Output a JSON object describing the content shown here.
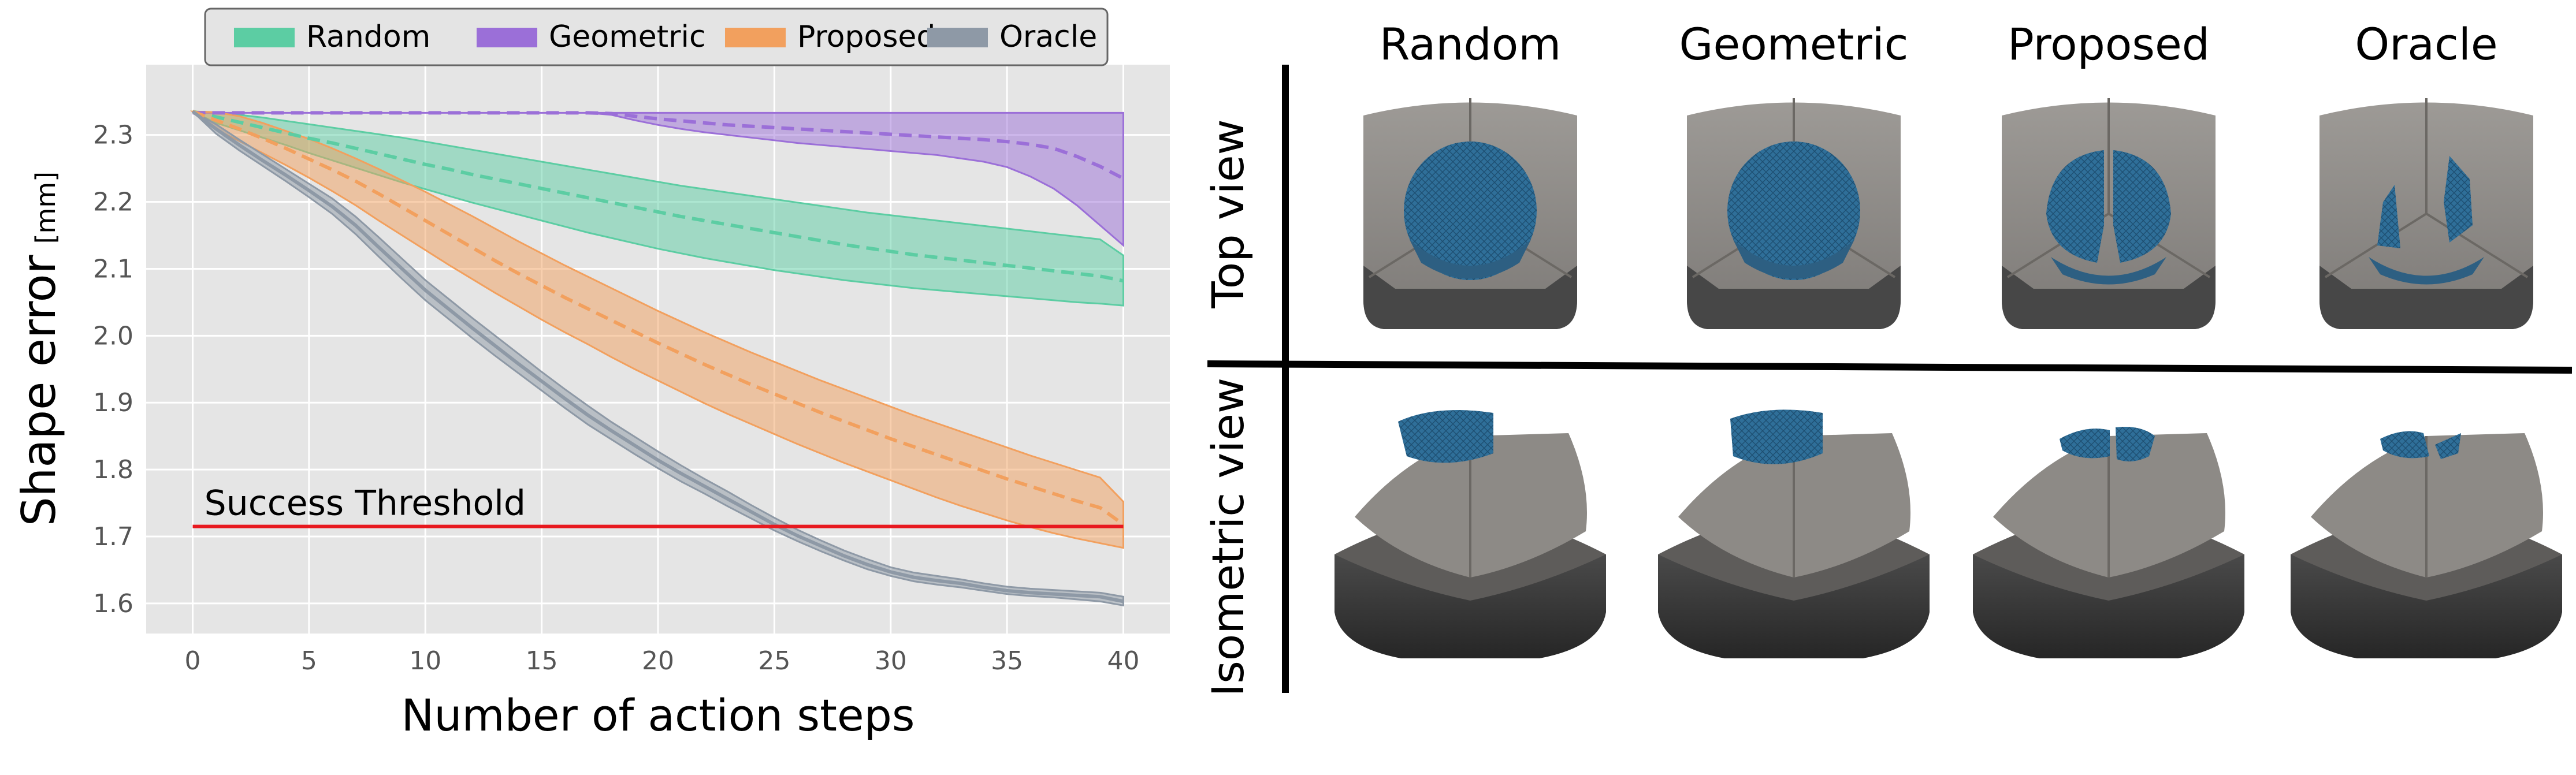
{
  "chart_data": {
    "type": "line",
    "xlabel": "Number of action steps",
    "ylabel": "Shape error",
    "ylabel_unit": "[mm]",
    "xlim": [
      -2,
      42
    ],
    "ylim": [
      1.555,
      2.405
    ],
    "x_ticks": [
      0,
      5,
      10,
      15,
      20,
      25,
      30,
      35,
      40
    ],
    "y_ticks": [
      1.6,
      1.7,
      1.8,
      1.9,
      2.0,
      2.1,
      2.2,
      2.3
    ],
    "y_tick_labels": [
      "1.6",
      "1.7",
      "1.8",
      "1.9",
      "2.0",
      "2.1",
      "2.2",
      "2.3"
    ],
    "grid": true,
    "legend_position": "top",
    "threshold": {
      "label": "Success Threshold",
      "value": 1.715,
      "color": "#e8191f"
    },
    "x": [
      0,
      1,
      2,
      3,
      4,
      5,
      6,
      7,
      8,
      9,
      10,
      11,
      12,
      13,
      14,
      15,
      16,
      17,
      18,
      19,
      20,
      21,
      22,
      23,
      24,
      25,
      26,
      27,
      28,
      29,
      30,
      31,
      32,
      33,
      34,
      35,
      36,
      37,
      38,
      39,
      40
    ],
    "series": [
      {
        "name": "Random",
        "color": "#5ccda3",
        "mean": [
          2.335,
          2.327,
          2.319,
          2.311,
          2.303,
          2.295,
          2.288,
          2.28,
          2.272,
          2.264,
          2.256,
          2.249,
          2.241,
          2.234,
          2.227,
          2.22,
          2.213,
          2.206,
          2.199,
          2.192,
          2.185,
          2.178,
          2.172,
          2.166,
          2.16,
          2.154,
          2.148,
          2.142,
          2.136,
          2.131,
          2.126,
          2.121,
          2.117,
          2.113,
          2.109,
          2.105,
          2.101,
          2.097,
          2.093,
          2.089,
          2.082
        ],
        "lower": [
          2.335,
          2.318,
          2.307,
          2.296,
          2.285,
          2.273,
          2.262,
          2.251,
          2.24,
          2.229,
          2.219,
          2.209,
          2.199,
          2.19,
          2.181,
          2.172,
          2.163,
          2.154,
          2.146,
          2.138,
          2.13,
          2.123,
          2.116,
          2.11,
          2.104,
          2.098,
          2.093,
          2.088,
          2.083,
          2.079,
          2.075,
          2.071,
          2.068,
          2.065,
          2.062,
          2.059,
          2.056,
          2.053,
          2.05,
          2.048,
          2.045
        ],
        "upper": [
          2.335,
          2.334,
          2.33,
          2.326,
          2.321,
          2.316,
          2.311,
          2.306,
          2.301,
          2.296,
          2.29,
          2.284,
          2.278,
          2.272,
          2.266,
          2.26,
          2.254,
          2.248,
          2.242,
          2.236,
          2.23,
          2.224,
          2.219,
          2.214,
          2.209,
          2.204,
          2.199,
          2.194,
          2.189,
          2.184,
          2.18,
          2.176,
          2.172,
          2.168,
          2.164,
          2.16,
          2.156,
          2.152,
          2.148,
          2.144,
          2.12
        ]
      },
      {
        "name": "Geometric",
        "color": "#9b6fd8",
        "mean": [
          2.333,
          2.333,
          2.333,
          2.333,
          2.333,
          2.333,
          2.333,
          2.333,
          2.333,
          2.333,
          2.333,
          2.333,
          2.333,
          2.333,
          2.333,
          2.333,
          2.333,
          2.333,
          2.332,
          2.328,
          2.324,
          2.321,
          2.318,
          2.315,
          2.313,
          2.311,
          2.309,
          2.307,
          2.305,
          2.303,
          2.301,
          2.299,
          2.297,
          2.295,
          2.293,
          2.29,
          2.286,
          2.28,
          2.268,
          2.253,
          2.235
        ],
        "lower": [
          2.333,
          2.333,
          2.333,
          2.333,
          2.333,
          2.333,
          2.333,
          2.333,
          2.333,
          2.333,
          2.333,
          2.333,
          2.333,
          2.333,
          2.333,
          2.333,
          2.333,
          2.333,
          2.33,
          2.322,
          2.315,
          2.309,
          2.304,
          2.3,
          2.296,
          2.292,
          2.288,
          2.285,
          2.282,
          2.279,
          2.276,
          2.273,
          2.27,
          2.265,
          2.26,
          2.252,
          2.238,
          2.22,
          2.195,
          2.165,
          2.135
        ],
        "upper": [
          2.333,
          2.333,
          2.333,
          2.333,
          2.333,
          2.333,
          2.333,
          2.333,
          2.333,
          2.333,
          2.333,
          2.333,
          2.333,
          2.333,
          2.333,
          2.333,
          2.333,
          2.333,
          2.333,
          2.333,
          2.333,
          2.333,
          2.333,
          2.333,
          2.333,
          2.333,
          2.333,
          2.333,
          2.333,
          2.333,
          2.333,
          2.333,
          2.333,
          2.333,
          2.333,
          2.333,
          2.333,
          2.333,
          2.333,
          2.333,
          2.333
        ]
      },
      {
        "name": "Proposed",
        "color": "#f2a05e",
        "mean": [
          2.335,
          2.322,
          2.309,
          2.295,
          2.28,
          2.264,
          2.248,
          2.231,
          2.212,
          2.192,
          2.172,
          2.152,
          2.132,
          2.112,
          2.093,
          2.075,
          2.057,
          2.04,
          2.023,
          2.006,
          1.989,
          1.973,
          1.957,
          1.942,
          1.927,
          1.913,
          1.899,
          1.885,
          1.872,
          1.859,
          1.846,
          1.834,
          1.822,
          1.81,
          1.798,
          1.786,
          1.775,
          1.764,
          1.753,
          1.743,
          1.718
        ],
        "lower": [
          2.335,
          2.308,
          2.291,
          2.273,
          2.255,
          2.236,
          2.216,
          2.195,
          2.172,
          2.15,
          2.128,
          2.106,
          2.085,
          2.064,
          2.044,
          2.024,
          2.005,
          1.987,
          1.968,
          1.95,
          1.933,
          1.916,
          1.899,
          1.883,
          1.868,
          1.853,
          1.838,
          1.824,
          1.81,
          1.797,
          1.784,
          1.771,
          1.758,
          1.746,
          1.735,
          1.724,
          1.714,
          1.705,
          1.697,
          1.69,
          1.683
        ],
        "upper": [
          2.335,
          2.334,
          2.328,
          2.318,
          2.306,
          2.294,
          2.28,
          2.265,
          2.249,
          2.232,
          2.215,
          2.197,
          2.179,
          2.16,
          2.141,
          2.123,
          2.105,
          2.088,
          2.071,
          2.054,
          2.037,
          2.021,
          2.005,
          1.99,
          1.975,
          1.961,
          1.947,
          1.933,
          1.92,
          1.907,
          1.894,
          1.881,
          1.869,
          1.857,
          1.845,
          1.833,
          1.821,
          1.81,
          1.799,
          1.788,
          1.752
        ]
      },
      {
        "name": "Oracle",
        "color": "#8e99a6",
        "mean": [
          2.335,
          2.309,
          2.285,
          2.262,
          2.24,
          2.217,
          2.193,
          2.165,
          2.132,
          2.1,
          2.068,
          2.04,
          2.012,
          1.985,
          1.958,
          1.932,
          1.906,
          1.881,
          1.858,
          1.836,
          1.814,
          1.794,
          1.775,
          1.756,
          1.737,
          1.718,
          1.701,
          1.686,
          1.671,
          1.658,
          1.647,
          1.639,
          1.634,
          1.63,
          1.624,
          1.619,
          1.616,
          1.614,
          1.612,
          1.61,
          1.603
        ],
        "lower": [
          2.335,
          2.302,
          2.277,
          2.254,
          2.231,
          2.207,
          2.182,
          2.152,
          2.118,
          2.085,
          2.053,
          2.025,
          1.997,
          1.97,
          1.944,
          1.918,
          1.892,
          1.867,
          1.845,
          1.823,
          1.802,
          1.782,
          1.764,
          1.745,
          1.727,
          1.709,
          1.693,
          1.678,
          1.664,
          1.651,
          1.641,
          1.633,
          1.628,
          1.624,
          1.619,
          1.614,
          1.611,
          1.609,
          1.606,
          1.603,
          1.597
        ],
        "upper": [
          2.335,
          2.316,
          2.293,
          2.271,
          2.249,
          2.227,
          2.205,
          2.178,
          2.147,
          2.115,
          2.083,
          2.055,
          2.027,
          2.0,
          1.973,
          1.946,
          1.92,
          1.895,
          1.871,
          1.849,
          1.827,
          1.806,
          1.786,
          1.767,
          1.747,
          1.728,
          1.71,
          1.694,
          1.679,
          1.666,
          1.654,
          1.646,
          1.641,
          1.636,
          1.63,
          1.625,
          1.622,
          1.62,
          1.618,
          1.616,
          1.61
        ]
      }
    ]
  },
  "panel": {
    "columns": [
      "Random",
      "Geometric",
      "Proposed",
      "Oracle"
    ],
    "rows": [
      "Top view",
      "Isometric view"
    ]
  },
  "colors": {
    "plot_bg": "#e5e5e5",
    "grid": "#ffffff",
    "text": "#000000",
    "tick_text": "#555555",
    "mesh_blue": "#2f6f99",
    "block_light": "#8f8c88",
    "block_dark": "#3a3a3a"
  }
}
